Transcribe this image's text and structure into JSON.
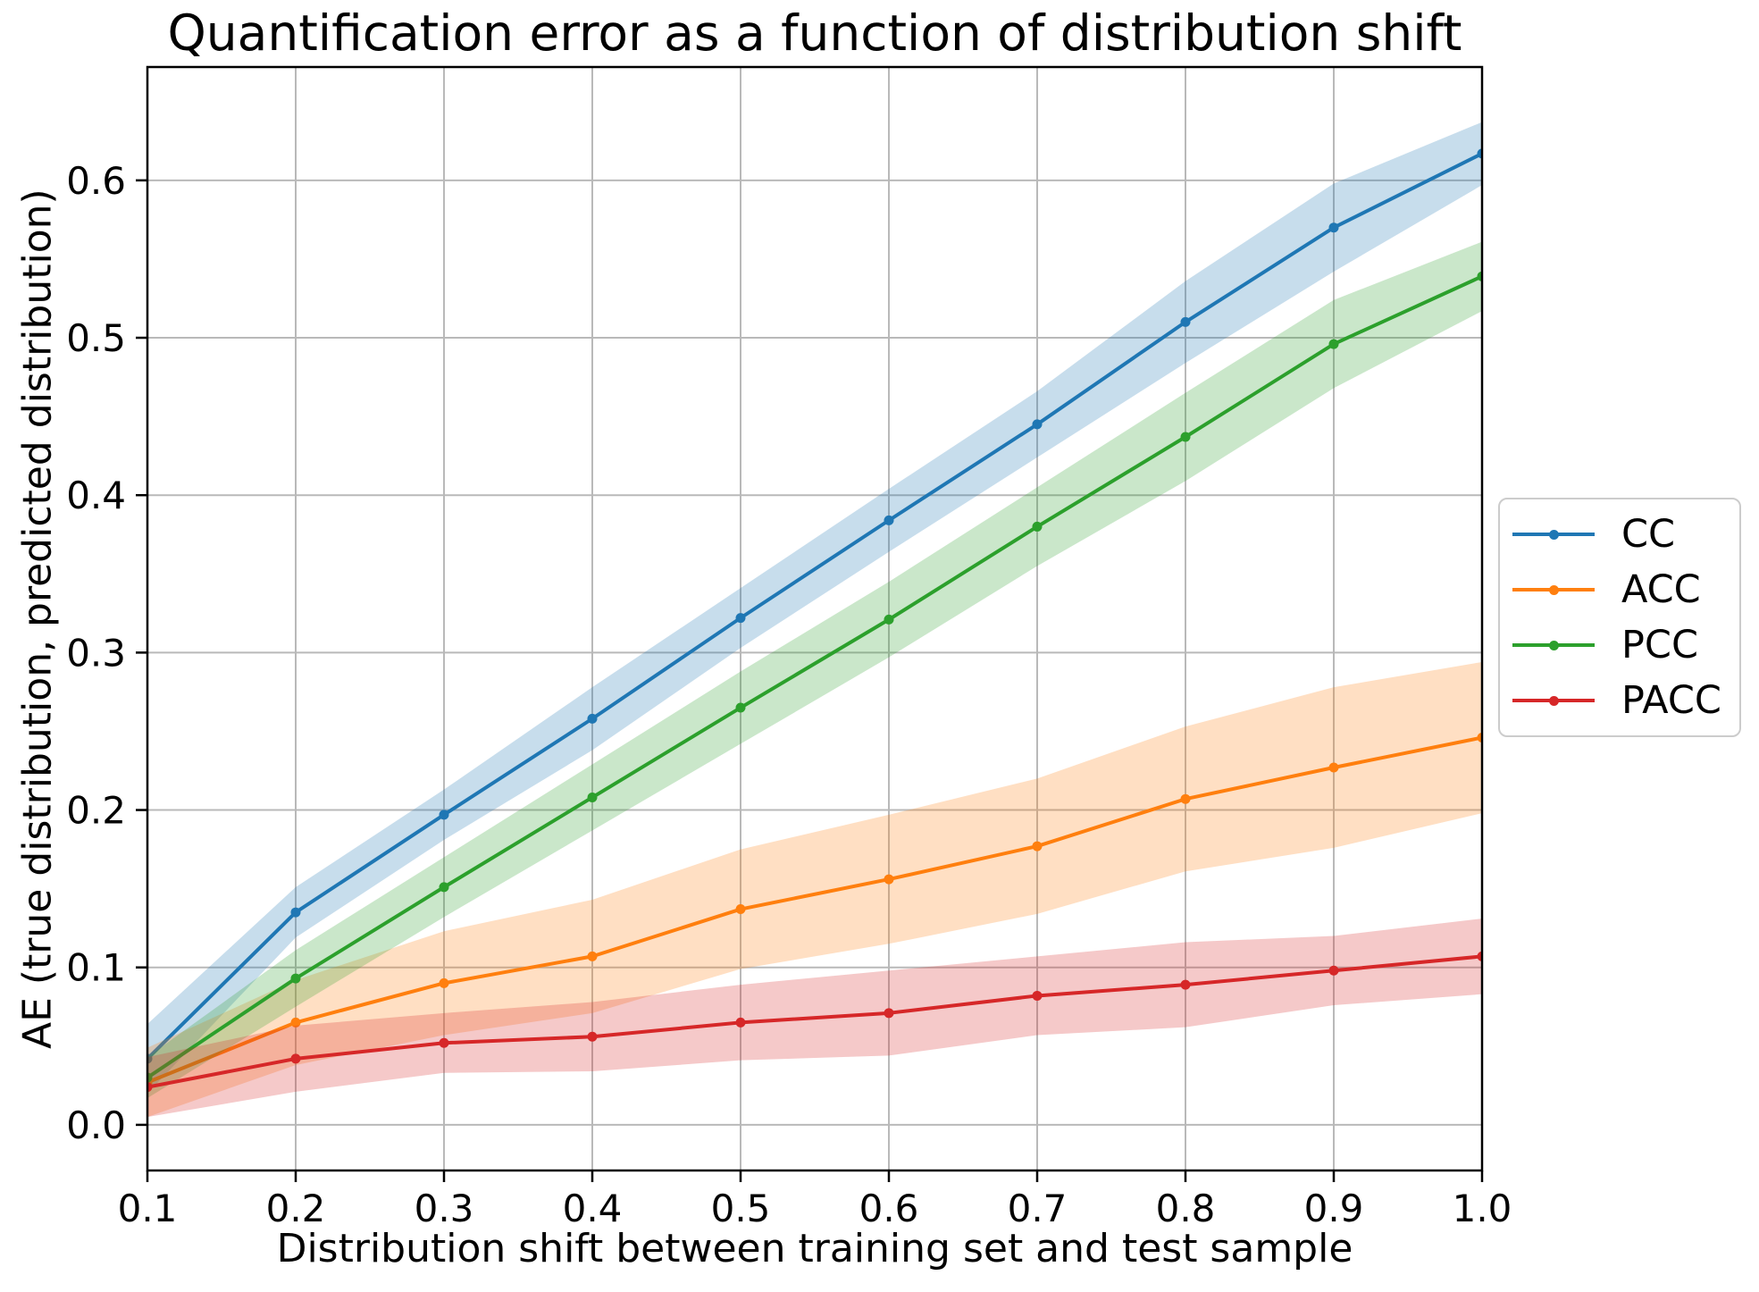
{
  "chart_data": {
    "type": "line",
    "title": "Quantification error as a function of distribution shift",
    "xlabel": "Distribution shift between training set and test sample",
    "ylabel": "AE (true distribution, predicted distribution)",
    "x": [
      0.1,
      0.2,
      0.3,
      0.4,
      0.5,
      0.6,
      0.7,
      0.8,
      0.9,
      1.0
    ],
    "x_tick_labels": [
      "0.1",
      "0.2",
      "0.3",
      "0.4",
      "0.5",
      "0.6",
      "0.7",
      "0.8",
      "0.9",
      "1.0"
    ],
    "y_tick_values": [
      0.0,
      0.1,
      0.2,
      0.3,
      0.4,
      0.5,
      0.6
    ],
    "y_tick_labels": [
      "0.0",
      "0.1",
      "0.2",
      "0.3",
      "0.4",
      "0.5",
      "0.6"
    ],
    "xlim": [
      0.1,
      1.0
    ],
    "ylim": [
      -0.029,
      0.672
    ],
    "grid": true,
    "legend_position": "outside-right",
    "series": [
      {
        "name": "CC",
        "color": "#1f77b4",
        "values": [
          0.042,
          0.135,
          0.197,
          0.258,
          0.322,
          0.384,
          0.445,
          0.51,
          0.57,
          0.617
        ],
        "band_lower": [
          0.02,
          0.119,
          0.181,
          0.238,
          0.303,
          0.364,
          0.424,
          0.484,
          0.542,
          0.597
        ],
        "band_upper": [
          0.064,
          0.151,
          0.213,
          0.278,
          0.341,
          0.404,
          0.466,
          0.536,
          0.598,
          0.637
        ]
      },
      {
        "name": "ACC",
        "color": "#ff7f0e",
        "values": [
          0.027,
          0.065,
          0.09,
          0.107,
          0.137,
          0.156,
          0.177,
          0.207,
          0.227,
          0.246
        ],
        "band_lower": [
          0.005,
          0.038,
          0.057,
          0.071,
          0.099,
          0.115,
          0.134,
          0.161,
          0.176,
          0.198
        ],
        "band_upper": [
          0.049,
          0.092,
          0.123,
          0.143,
          0.175,
          0.197,
          0.22,
          0.253,
          0.278,
          0.294
        ]
      },
      {
        "name": "PCC",
        "color": "#2ca02c",
        "values": [
          0.03,
          0.093,
          0.151,
          0.208,
          0.265,
          0.321,
          0.38,
          0.437,
          0.496,
          0.539
        ],
        "band_lower": [
          0.017,
          0.075,
          0.132,
          0.187,
          0.242,
          0.297,
          0.355,
          0.409,
          0.468,
          0.517
        ],
        "band_upper": [
          0.043,
          0.111,
          0.17,
          0.229,
          0.288,
          0.345,
          0.405,
          0.465,
          0.524,
          0.561
        ]
      },
      {
        "name": "PACC",
        "color": "#d62728",
        "values": [
          0.024,
          0.042,
          0.052,
          0.056,
          0.065,
          0.071,
          0.082,
          0.089,
          0.098,
          0.107
        ],
        "band_lower": [
          0.005,
          0.021,
          0.033,
          0.034,
          0.041,
          0.044,
          0.057,
          0.062,
          0.076,
          0.083
        ],
        "band_upper": [
          0.043,
          0.063,
          0.071,
          0.078,
          0.089,
          0.098,
          0.107,
          0.116,
          0.12,
          0.131
        ]
      }
    ]
  },
  "style": {
    "background": "#ffffff",
    "grid_color": "#b9b9b9",
    "spine_color": "#000000",
    "tick_color": "#000000",
    "band_alpha": 0.25,
    "legend_border_color": "#cccccc"
  }
}
